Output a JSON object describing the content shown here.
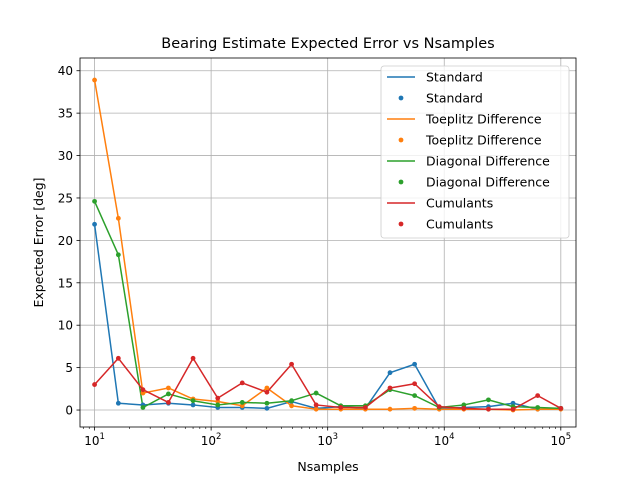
{
  "chart_data": {
    "type": "line",
    "title": "Bearing Estimate Expected Error vs Nsamples",
    "xlabel": "Nsamples",
    "ylabel": "Expected Error [deg]",
    "xscale": "log",
    "xlim": [
      7.5,
      135000
    ],
    "ylim": [
      -2,
      41.5
    ],
    "xticks": [
      {
        "value": 10,
        "base": "10",
        "exp": "1"
      },
      {
        "value": 100,
        "base": "10",
        "exp": "2"
      },
      {
        "value": 1000,
        "base": "10",
        "exp": "3"
      },
      {
        "value": 10000,
        "base": "10",
        "exp": "4"
      },
      {
        "value": 100000,
        "base": "10",
        "exp": "5"
      }
    ],
    "yticks": [
      {
        "value": 0,
        "label": "0"
      },
      {
        "value": 5,
        "label": "5"
      },
      {
        "value": 10,
        "label": "10"
      },
      {
        "value": 15,
        "label": "15"
      },
      {
        "value": 20,
        "label": "20"
      },
      {
        "value": 25,
        "label": "25"
      },
      {
        "value": 30,
        "label": "30"
      },
      {
        "value": 35,
        "label": "35"
      },
      {
        "value": 40,
        "label": "40"
      }
    ],
    "grid": true,
    "legend_position": "top-right",
    "x": [
      10,
      16,
      26,
      43,
      70,
      114,
      185,
      301,
      490,
      796,
      1295,
      2105,
      3425,
      5568,
      9056,
      14725,
      23944,
      38933,
      63307,
      100000
    ],
    "series": [
      {
        "name": "Standard",
        "color": "#1f77b4",
        "values": [
          21.9,
          0.8,
          0.6,
          0.8,
          0.6,
          0.3,
          0.3,
          0.2,
          1.0,
          0.2,
          0.4,
          0.2,
          4.4,
          5.4,
          0.2,
          0.3,
          0.4,
          0.8,
          0.1,
          0.2
        ]
      },
      {
        "name": "Toeplitz Difference",
        "color": "#ff7f0e",
        "values": [
          38.9,
          22.6,
          2.0,
          2.6,
          1.3,
          1.0,
          0.5,
          2.6,
          0.5,
          0.1,
          0.1,
          0.1,
          0.1,
          0.2,
          0.1,
          0.1,
          0.1,
          0.0,
          0.1,
          0.1
        ]
      },
      {
        "name": "Diagonal Difference",
        "color": "#2ca02c",
        "values": [
          24.6,
          18.3,
          0.3,
          1.9,
          1.1,
          0.6,
          0.9,
          0.8,
          1.1,
          2.0,
          0.5,
          0.5,
          2.4,
          1.7,
          0.3,
          0.6,
          1.2,
          0.4,
          0.3,
          0.2
        ]
      },
      {
        "name": "Cumulants",
        "color": "#d62728",
        "values": [
          3.0,
          6.1,
          2.4,
          0.9,
          6.1,
          1.4,
          3.2,
          2.1,
          5.4,
          0.6,
          0.3,
          0.3,
          2.6,
          3.1,
          0.4,
          0.2,
          0.1,
          0.1,
          1.7,
          0.2
        ]
      }
    ]
  }
}
